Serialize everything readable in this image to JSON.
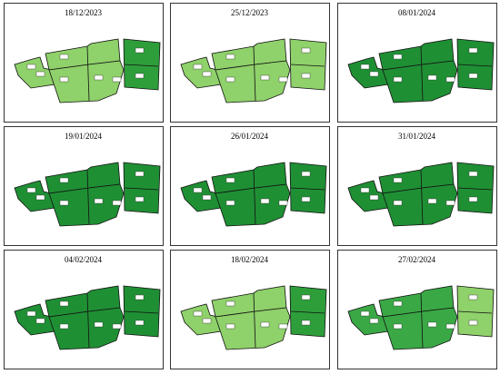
{
  "panels": [
    {
      "date": "18/12/2023"
    },
    {
      "date": "25/12/2023"
    },
    {
      "date": "08/01/2024"
    },
    {
      "date": "19/01/2024"
    },
    {
      "date": "26/01/2024"
    },
    {
      "date": "31/01/2024"
    },
    {
      "date": "04/02/2024"
    },
    {
      "date": "18/02/2024"
    },
    {
      "date": "27/02/2024"
    }
  ]
}
